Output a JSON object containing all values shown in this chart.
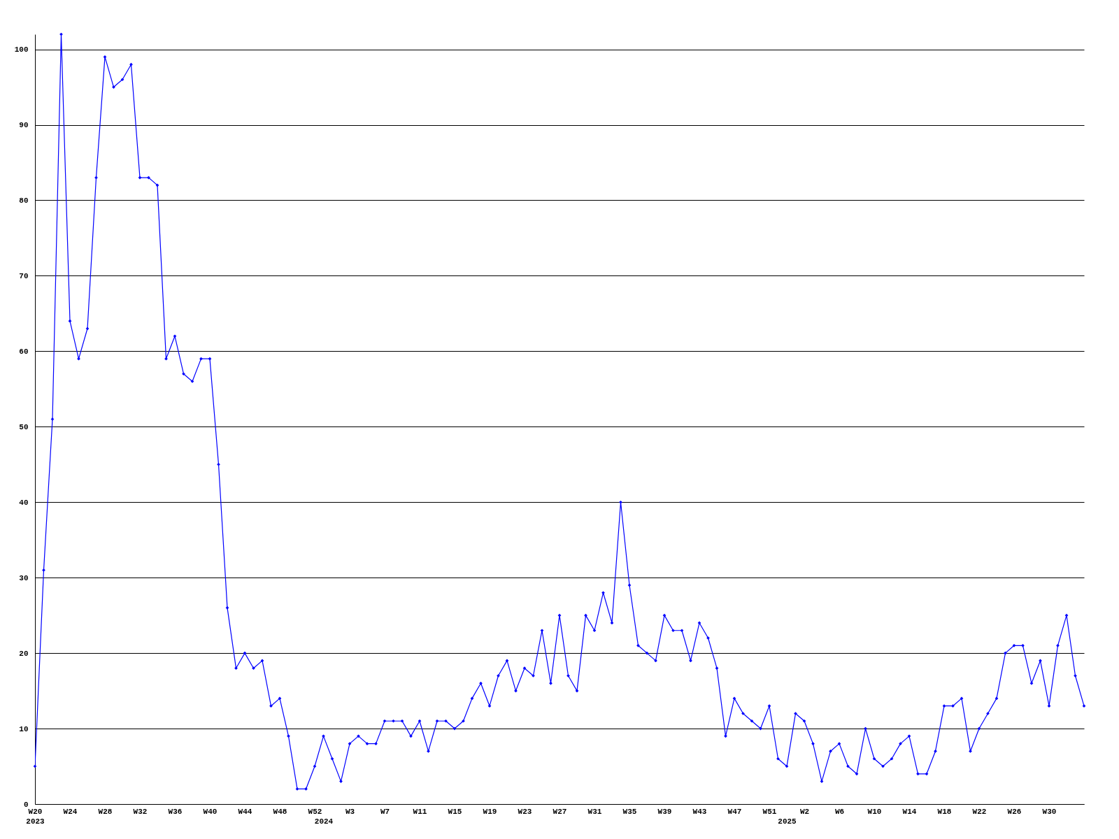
{
  "chart_data": {
    "type": "line",
    "categories": [
      "W20\n2023",
      null,
      null,
      null,
      "W24",
      null,
      null,
      null,
      "W28",
      null,
      null,
      null,
      "W32",
      null,
      null,
      null,
      "W36",
      null,
      null,
      null,
      "W40",
      null,
      null,
      null,
      "W44",
      null,
      null,
      null,
      "W48",
      null,
      null,
      null,
      "W52",
      "\n2024",
      null,
      null,
      "W3",
      null,
      null,
      null,
      "W7",
      null,
      null,
      null,
      "W11",
      null,
      null,
      null,
      "W15",
      null,
      null,
      null,
      "W19",
      null,
      null,
      null,
      "W23",
      null,
      null,
      null,
      "W27",
      null,
      null,
      null,
      "W31",
      null,
      null,
      null,
      "W35",
      null,
      null,
      null,
      "W39",
      null,
      null,
      null,
      "W43",
      null,
      null,
      null,
      "W47",
      null,
      null,
      null,
      "W51",
      null,
      "\n2025",
      null,
      "W2",
      null,
      null,
      null,
      "W6",
      null,
      null,
      null,
      "W10",
      null,
      null,
      null,
      "W14",
      null,
      null,
      null,
      "W18",
      null,
      null,
      null,
      "W22",
      null,
      null,
      null,
      "W26",
      null,
      null,
      null,
      "W30",
      null,
      null,
      null,
      null
    ],
    "series": [
      {
        "color": "#0000ff",
        "values": [
          5,
          31,
          51,
          102,
          64,
          59,
          63,
          83,
          99,
          95,
          96,
          98,
          83,
          83,
          82,
          59,
          62,
          57,
          56,
          59,
          59,
          45,
          26,
          18,
          20,
          18,
          19,
          13,
          14,
          9,
          2,
          2,
          5,
          9,
          6,
          3,
          8,
          9,
          8,
          8,
          11,
          11,
          11,
          9,
          11,
          7,
          11,
          11,
          10,
          11,
          14,
          16,
          13,
          17,
          19,
          15,
          18,
          17,
          23,
          16,
          25,
          17,
          15,
          25,
          23,
          28,
          24,
          40,
          29,
          21,
          20,
          19,
          25,
          23,
          23,
          19,
          24,
          22,
          18,
          9,
          14,
          12,
          11,
          10,
          13,
          6,
          5,
          12,
          11,
          8,
          3,
          7,
          8,
          5,
          4,
          10,
          6,
          5,
          6,
          8,
          9,
          4,
          4,
          7,
          13,
          13,
          14,
          7,
          10,
          12,
          14,
          20,
          21,
          21,
          16,
          19,
          13,
          21,
          25,
          17,
          13
        ]
      }
    ],
    "ylim": [
      0,
      102
    ],
    "yticks": [
      0,
      10,
      20,
      30,
      40,
      50,
      60,
      70,
      80,
      90,
      100
    ],
    "grid": "y",
    "legend": false,
    "marker": "diamond",
    "line_style": "solid"
  }
}
